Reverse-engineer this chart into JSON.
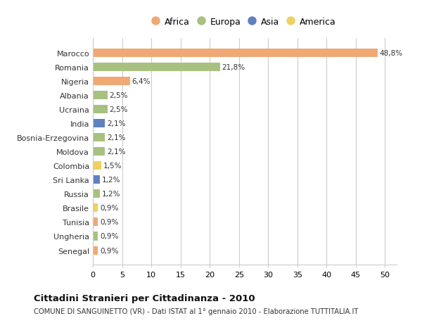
{
  "countries": [
    "Marocco",
    "Romania",
    "Nigeria",
    "Albania",
    "Ucraina",
    "India",
    "Bosnia-Erzegovina",
    "Moldova",
    "Colombia",
    "Sri Lanka",
    "Russia",
    "Brasile",
    "Tunisia",
    "Ungheria",
    "Senegal"
  ],
  "values": [
    48.8,
    21.8,
    6.4,
    2.5,
    2.5,
    2.1,
    2.1,
    2.1,
    1.5,
    1.2,
    1.2,
    0.9,
    0.9,
    0.9,
    0.9
  ],
  "labels": [
    "48,8%",
    "21,8%",
    "6,4%",
    "2,5%",
    "2,5%",
    "2,1%",
    "2,1%",
    "2,1%",
    "1,5%",
    "1,2%",
    "1,2%",
    "0,9%",
    "0,9%",
    "0,9%",
    "0,9%"
  ],
  "continents": [
    "Africa",
    "Europa",
    "Africa",
    "Europa",
    "Europa",
    "Asia",
    "Europa",
    "Europa",
    "America",
    "Asia",
    "Europa",
    "America",
    "Africa",
    "Europa",
    "Africa"
  ],
  "colors": {
    "Africa": "#F0A875",
    "Europa": "#A8C080",
    "Asia": "#6080C0",
    "America": "#F0D060"
  },
  "legend_order": [
    "Africa",
    "Europa",
    "Asia",
    "America"
  ],
  "title": "Cittadini Stranieri per Cittadinanza - 2010",
  "subtitle": "COMUNE DI SANGUINETTO (VR) - Dati ISTAT al 1° gennaio 2010 - Elaborazione TUTTITALIA.IT",
  "xlim": [
    0,
    52
  ],
  "xticks": [
    0,
    5,
    10,
    15,
    20,
    25,
    30,
    35,
    40,
    45,
    50
  ],
  "bg_color": "#FFFFFF",
  "grid_color": "#CCCCCC",
  "bar_height": 0.6
}
